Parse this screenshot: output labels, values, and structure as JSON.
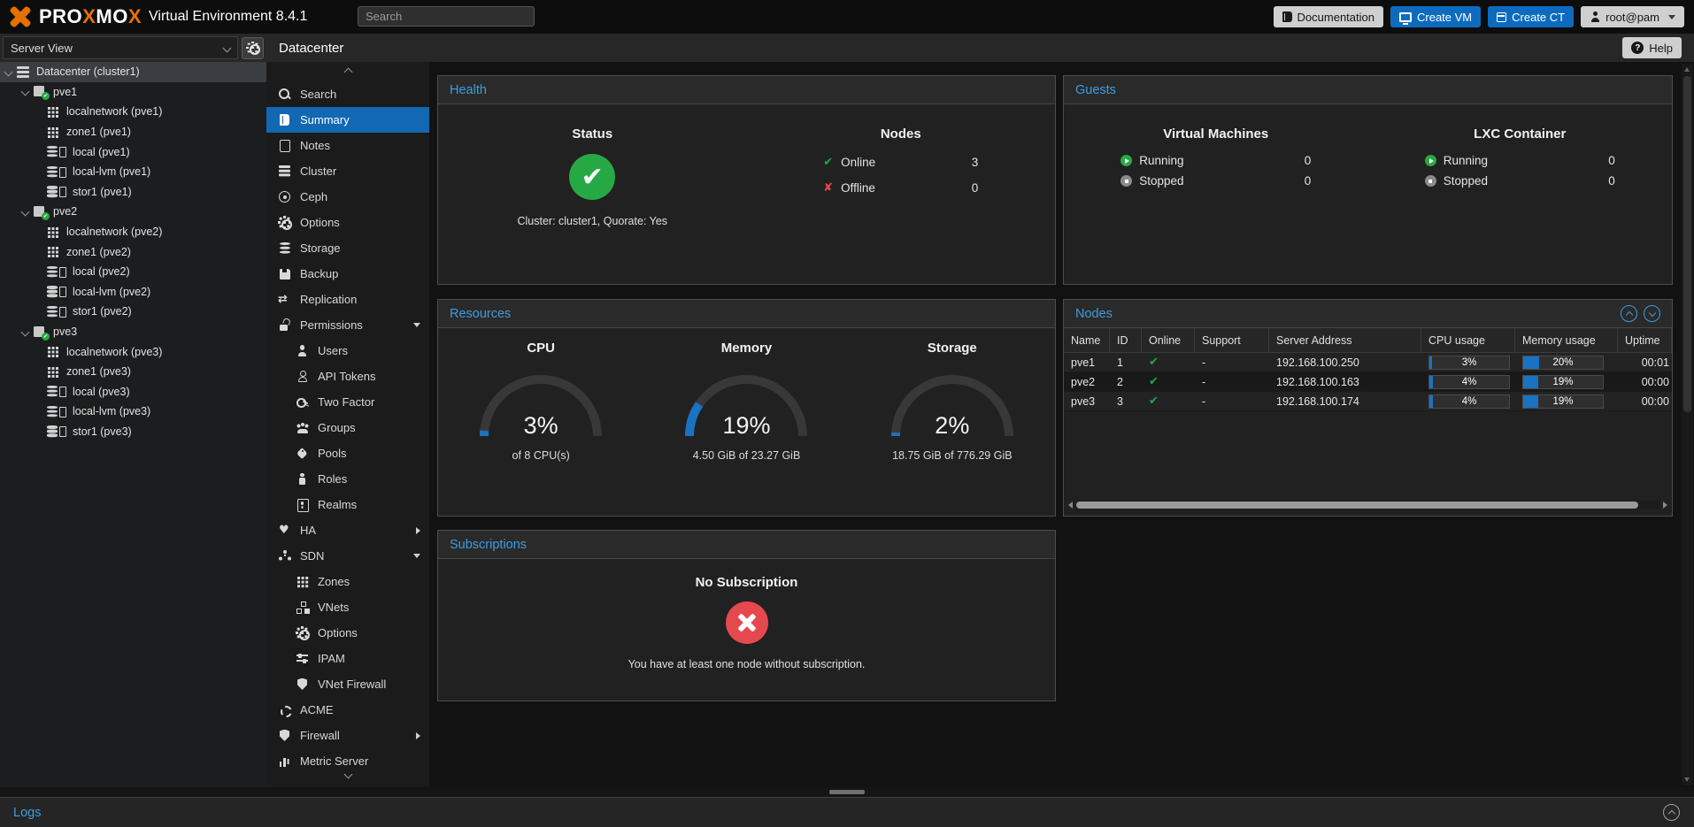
{
  "topbar": {
    "logo": {
      "p1": "PRO",
      "x1": "X",
      "p2": "MO",
      "x2": "X"
    },
    "subtitle": "Virtual Environment 8.4.1",
    "search_placeholder": "Search",
    "documentation": "Documentation",
    "create_vm": "Create VM",
    "create_ct": "Create CT",
    "user": "root@pam"
  },
  "header": {
    "title": "Datacenter",
    "help": "Help"
  },
  "sidebar": {
    "view_selector": "Server View",
    "tree": [
      {
        "depth": 0,
        "icon": "server",
        "label": "Datacenter (cluster1)",
        "selected": true,
        "caret": true
      },
      {
        "depth": 1,
        "icon": "node",
        "label": "pve1",
        "selected": false,
        "caret": true
      },
      {
        "depth": 2,
        "icon": "grid",
        "label": "localnetwork (pve1)",
        "selected": false,
        "caret": false
      },
      {
        "depth": 2,
        "icon": "grid",
        "label": "zone1 (pve1)",
        "selected": false,
        "caret": false
      },
      {
        "depth": 2,
        "icon": "disk",
        "label": "local (pve1)",
        "selected": false,
        "caret": false
      },
      {
        "depth": 2,
        "icon": "disk",
        "label": "local-lvm (pve1)",
        "selected": false,
        "caret": false
      },
      {
        "depth": 2,
        "icon": "disk",
        "label": "stor1 (pve1)",
        "selected": false,
        "caret": false
      },
      {
        "depth": 1,
        "icon": "node",
        "label": "pve2",
        "selected": false,
        "caret": true
      },
      {
        "depth": 2,
        "icon": "grid",
        "label": "localnetwork (pve2)",
        "selected": false,
        "caret": false
      },
      {
        "depth": 2,
        "icon": "grid",
        "label": "zone1 (pve2)",
        "selected": false,
        "caret": false
      },
      {
        "depth": 2,
        "icon": "disk",
        "label": "local (pve2)",
        "selected": false,
        "caret": false
      },
      {
        "depth": 2,
        "icon": "disk",
        "label": "local-lvm (pve2)",
        "selected": false,
        "caret": false
      },
      {
        "depth": 2,
        "icon": "disk",
        "label": "stor1 (pve2)",
        "selected": false,
        "caret": false
      },
      {
        "depth": 1,
        "icon": "node",
        "label": "pve3",
        "selected": false,
        "caret": true
      },
      {
        "depth": 2,
        "icon": "grid",
        "label": "localnetwork (pve3)",
        "selected": false,
        "caret": false
      },
      {
        "depth": 2,
        "icon": "grid",
        "label": "zone1 (pve3)",
        "selected": false,
        "caret": false
      },
      {
        "depth": 2,
        "icon": "disk",
        "label": "local (pve3)",
        "selected": false,
        "caret": false
      },
      {
        "depth": 2,
        "icon": "disk",
        "label": "local-lvm (pve3)",
        "selected": false,
        "caret": false
      },
      {
        "depth": 2,
        "icon": "disk",
        "label": "stor1 (pve3)",
        "selected": false,
        "caret": false
      }
    ]
  },
  "menu": {
    "items": [
      {
        "label": "Search",
        "icon": "search",
        "indent": 0,
        "selected": false,
        "caret": null
      },
      {
        "label": "Summary",
        "icon": "book",
        "indent": 0,
        "selected": true,
        "caret": null
      },
      {
        "label": "Notes",
        "icon": "note",
        "indent": 0,
        "selected": false,
        "caret": null
      },
      {
        "label": "Cluster",
        "icon": "cluster",
        "indent": 0,
        "selected": false,
        "caret": null
      },
      {
        "label": "Ceph",
        "icon": "ceph",
        "indent": 0,
        "selected": false,
        "caret": null
      },
      {
        "label": "Options",
        "icon": "gear",
        "indent": 0,
        "selected": false,
        "caret": null
      },
      {
        "label": "Storage",
        "icon": "storage",
        "indent": 0,
        "selected": false,
        "caret": null
      },
      {
        "label": "Backup",
        "icon": "backup",
        "indent": 0,
        "selected": false,
        "caret": null
      },
      {
        "label": "Replication",
        "icon": "repl",
        "indent": 0,
        "selected": false,
        "caret": null
      },
      {
        "label": "Permissions",
        "icon": "lock",
        "indent": 0,
        "selected": false,
        "caret": "down"
      },
      {
        "label": "Users",
        "icon": "user",
        "indent": 1,
        "selected": false,
        "caret": null
      },
      {
        "label": "API Tokens",
        "icon": "usero",
        "indent": 1,
        "selected": false,
        "caret": null
      },
      {
        "label": "Two Factor",
        "icon": "key",
        "indent": 1,
        "selected": false,
        "caret": null
      },
      {
        "label": "Groups",
        "icon": "group",
        "indent": 1,
        "selected": false,
        "caret": null
      },
      {
        "label": "Pools",
        "icon": "tag",
        "indent": 1,
        "selected": false,
        "caret": null
      },
      {
        "label": "Roles",
        "icon": "role",
        "indent": 1,
        "selected": false,
        "caret": null
      },
      {
        "label": "Realms",
        "icon": "realm",
        "indent": 1,
        "selected": false,
        "caret": null
      },
      {
        "label": "HA",
        "icon": "heart",
        "indent": 0,
        "selected": false,
        "caret": "right"
      },
      {
        "label": "SDN",
        "icon": "sdn",
        "indent": 0,
        "selected": false,
        "caret": "down"
      },
      {
        "label": "Zones",
        "icon": "grid",
        "indent": 1,
        "selected": false,
        "caret": null
      },
      {
        "label": "VNets",
        "icon": "vnet",
        "indent": 1,
        "selected": false,
        "caret": null
      },
      {
        "label": "Options",
        "icon": "gear",
        "indent": 1,
        "selected": false,
        "caret": null
      },
      {
        "label": "IPAM",
        "icon": "sliders",
        "indent": 1,
        "selected": false,
        "caret": null
      },
      {
        "label": "VNet Firewall",
        "icon": "shield",
        "indent": 1,
        "selected": false,
        "caret": null
      },
      {
        "label": "ACME",
        "icon": "acme",
        "indent": 0,
        "selected": false,
        "caret": null
      },
      {
        "label": "Firewall",
        "icon": "shield",
        "indent": 0,
        "selected": false,
        "caret": "right"
      },
      {
        "label": "Metric Server",
        "icon": "chart",
        "indent": 0,
        "selected": false,
        "caret": null
      }
    ]
  },
  "health": {
    "title": "Health",
    "status_heading": "Status",
    "cluster_text": "Cluster: cluster1, Quorate: Yes",
    "nodes_heading": "Nodes",
    "online_label": "Online",
    "online_count": "3",
    "offline_label": "Offline",
    "offline_count": "0"
  },
  "guests": {
    "title": "Guests",
    "columns": [
      {
        "heading": "Virtual Machines",
        "running_label": "Running",
        "running_count": "0",
        "stopped_label": "Stopped",
        "stopped_count": "0"
      },
      {
        "heading": "LXC Container",
        "running_label": "Running",
        "running_count": "0",
        "stopped_label": "Stopped",
        "stopped_count": "0"
      }
    ]
  },
  "resources": {
    "title": "Resources",
    "gauges": [
      {
        "label": "CPU",
        "percent": 3,
        "value_text": "3%",
        "subtitle": "of 8 CPU(s)"
      },
      {
        "label": "Memory",
        "percent": 19,
        "value_text": "19%",
        "subtitle": "4.50 GiB of 23.27 GiB"
      },
      {
        "label": "Storage",
        "percent": 2,
        "value_text": "2%",
        "subtitle": "18.75 GiB of 776.29 GiB"
      }
    ]
  },
  "subscriptions": {
    "title": "Subscriptions",
    "heading": "No Subscription",
    "message": "You have at least one node without subscription."
  },
  "nodes": {
    "title": "Nodes",
    "columns": [
      "Name",
      "ID",
      "Online",
      "Support",
      "Server Address",
      "CPU usage",
      "Memory usage",
      "Uptime"
    ],
    "rows": [
      {
        "name": "pve1",
        "id": "1",
        "online": true,
        "support": "-",
        "address": "192.168.100.250",
        "cpu_text": "3%",
        "cpu_pct": 3,
        "mem_text": "20%",
        "mem_pct": 20,
        "uptime": "00:01"
      },
      {
        "name": "pve2",
        "id": "2",
        "online": true,
        "support": "-",
        "address": "192.168.100.163",
        "cpu_text": "4%",
        "cpu_pct": 4,
        "mem_text": "19%",
        "mem_pct": 19,
        "uptime": "00:00"
      },
      {
        "name": "pve3",
        "id": "3",
        "online": true,
        "support": "-",
        "address": "192.168.100.174",
        "cpu_text": "4%",
        "cpu_pct": 4,
        "mem_text": "19%",
        "mem_pct": 19,
        "uptime": "00:00"
      }
    ]
  },
  "logs": {
    "title": "Logs"
  },
  "colors": {
    "accent_blue": "#3f9ce0",
    "selection_blue": "#1268b2",
    "button_blue": "#0d6bbf",
    "green": "#26a944",
    "red": "#e6484f",
    "gauge_blue": "#1a72c2",
    "orange": "#e57000"
  }
}
